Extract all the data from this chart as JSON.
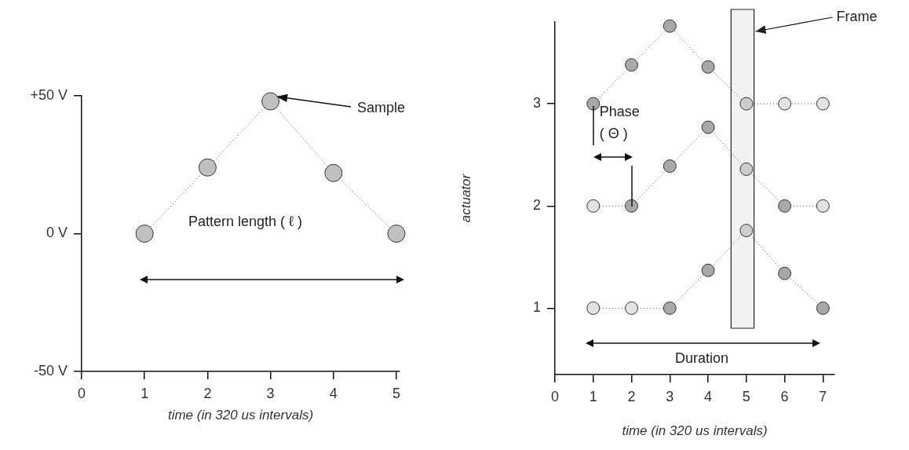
{
  "chart_data": [
    {
      "type": "line",
      "xlabel": "time (in 320 us intervals)",
      "x": [
        1,
        2,
        3,
        4,
        5
      ],
      "values": [
        0,
        24,
        48,
        22,
        0
      ],
      "color": "#c0c0c0",
      "xlim": [
        0,
        5.05
      ],
      "xticks": [
        0,
        1,
        2,
        3,
        4,
        5
      ],
      "ylim": [
        -50,
        50
      ],
      "yticks": [
        {
          "value": -50,
          "label": "-50 V"
        },
        {
          "value": 0,
          "label": "0 V"
        },
        {
          "value": 50,
          "label": "+50 V"
        }
      ],
      "marker": "circle",
      "line_style": "dotted",
      "grid": false,
      "legend": false,
      "annotations": [
        "Sample",
        "Pattern length ( ℓ )"
      ]
    },
    {
      "type": "line",
      "xlabel": "time (in 320 us intervals)",
      "ylabel": "actuator",
      "x": [
        1,
        2,
        3,
        4,
        5,
        6,
        7
      ],
      "series": [
        {
          "color": "#404040",
          "colors": [
            "#a8a8a8",
            "#a8a8a8",
            "#a8a8a8",
            "#a8a8a8",
            "#cccccc",
            "#e2e2e2",
            "#e2e2e2"
          ],
          "values": [
            3,
            3.38,
            3.76,
            3.36,
            3,
            3,
            3
          ]
        },
        {
          "color": "#404040",
          "colors": [
            "#e2e2e2",
            "#a8a8a8",
            "#a8a8a8",
            "#a8a8a8",
            "#cccccc",
            "#a8a8a8",
            "#e2e2e2"
          ],
          "values": [
            2,
            2,
            2.39,
            2.77,
            2.36,
            2,
            2
          ]
        },
        {
          "color": "#404040",
          "colors": [
            "#e2e2e2",
            "#e2e2e2",
            "#a8a8a8",
            "#a8a8a8",
            "#cccccc",
            "#a8a8a8",
            "#a8a8a8"
          ],
          "values": [
            1,
            1,
            1,
            1.37,
            1.76,
            1.34,
            1
          ]
        }
      ],
      "xlim": [
        0,
        7.3
      ],
      "xticks": [
        0,
        1,
        2,
        3,
        4,
        5,
        6,
        7
      ],
      "ylim": [
        0.35,
        3.8
      ],
      "yticks": [
        1,
        2,
        3
      ],
      "marker": "circle",
      "line_style": "dotted",
      "grid": false,
      "legend": false,
      "bands": [
        {
          "axis": "x",
          "from": 4.6,
          "to": 5.2,
          "label": "Frame",
          "color": "#f2f2f2"
        }
      ],
      "annotations": [
        {
          "text": "Phase ( Θ )",
          "x": 1,
          "y": 3
        },
        "Duration"
      ]
    }
  ]
}
